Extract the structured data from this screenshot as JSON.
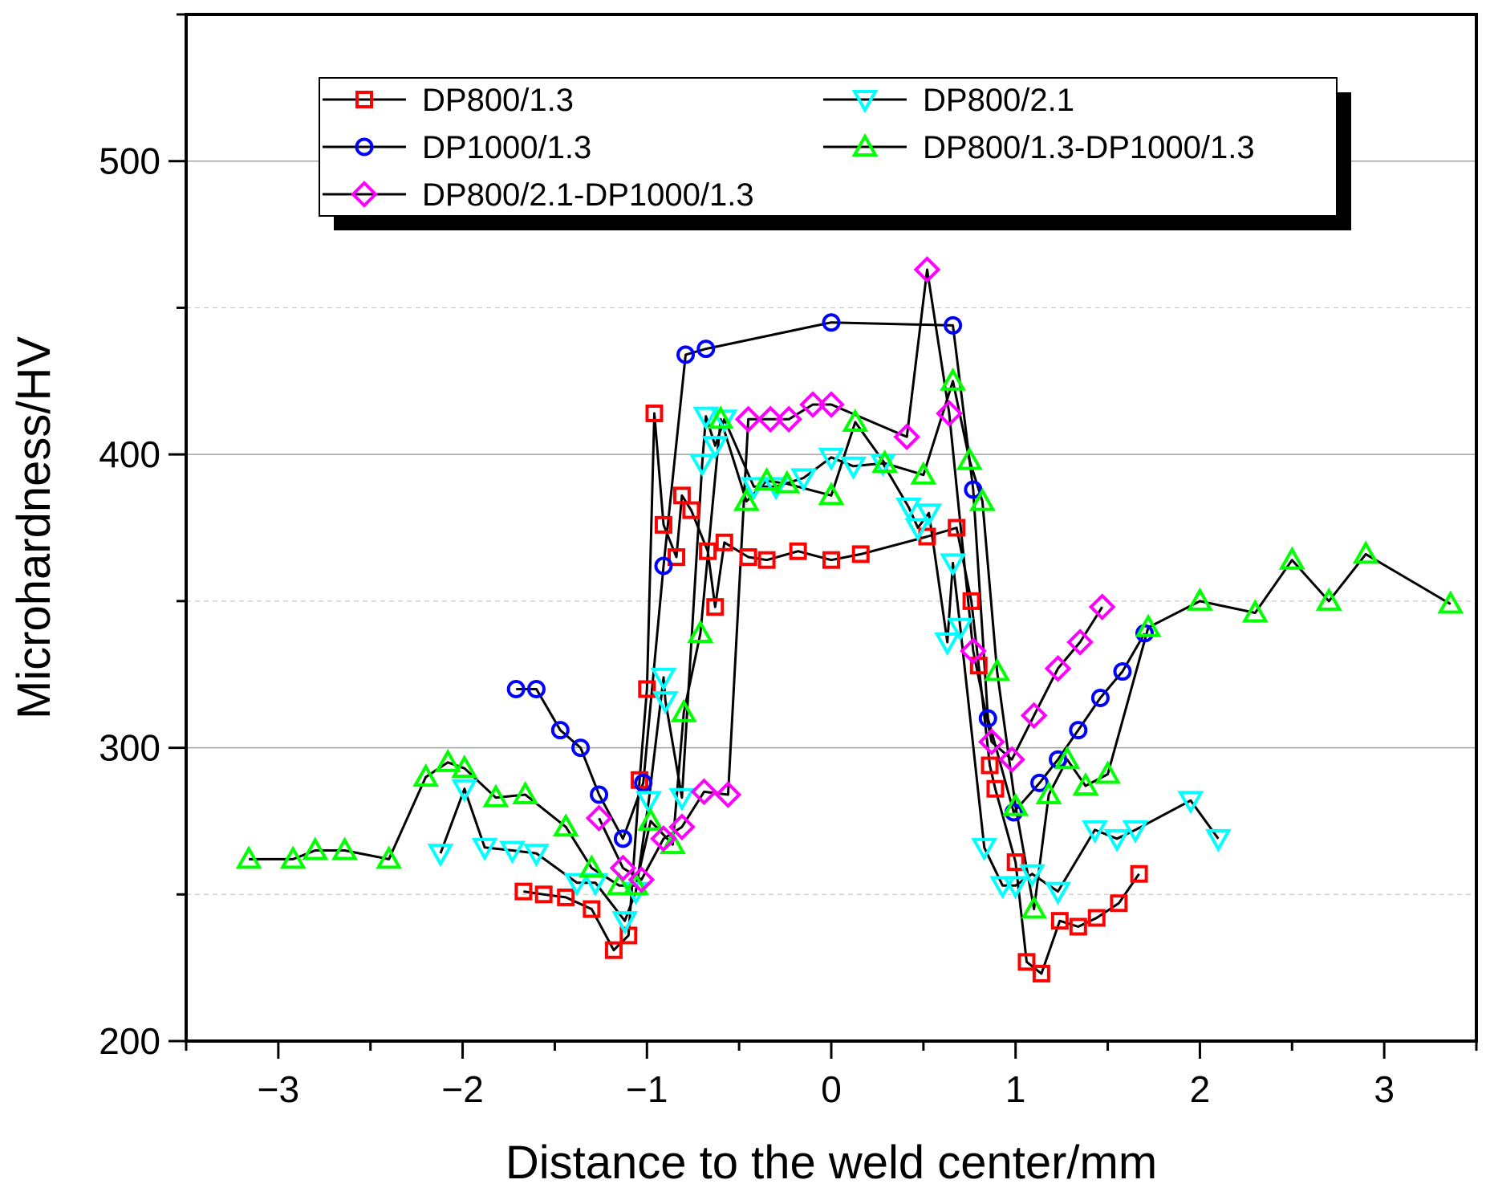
{
  "chart_data": {
    "type": "line",
    "title": "",
    "xlabel": "Distance to the weld center/mm",
    "ylabel": "Microhardness/HV",
    "xlim": [
      -3.5,
      3.5
    ],
    "ylim": [
      200,
      550
    ],
    "xticks": [
      -3,
      -2,
      -1,
      0,
      1,
      2,
      3
    ],
    "xtick_labels": [
      "−3",
      "−2",
      "−1",
      "0",
      "1",
      "2",
      "3"
    ],
    "yticks": [
      200,
      300,
      400,
      500
    ],
    "ytick_labels": [
      "200",
      "300",
      "400",
      "500"
    ],
    "major_grid_y": [
      300,
      400,
      500
    ],
    "minor_grid_y": [
      250,
      350,
      450
    ],
    "legend_position": "top",
    "series": [
      {
        "name": "DP800/1.3",
        "color": "#ff0000",
        "marker": "square",
        "x": [
          -1.67,
          -1.56,
          -1.44,
          -1.3,
          -1.18,
          -1.1,
          -1.04,
          -1.0,
          -0.96,
          -0.91,
          -0.84,
          -0.81,
          -0.76,
          -0.67,
          -0.63,
          -0.58,
          -0.45,
          -0.35,
          -0.18,
          0.0,
          0.16,
          0.52,
          0.68,
          0.76,
          0.8,
          0.86,
          0.89,
          1.0,
          1.06,
          1.14,
          1.24,
          1.34,
          1.44,
          1.56,
          1.67
        ],
        "y": [
          251,
          250,
          249,
          245,
          231,
          236,
          289,
          320,
          414,
          376,
          365,
          386,
          381,
          367,
          348,
          370,
          365,
          364,
          367,
          364,
          366,
          372,
          375,
          350,
          328,
          294,
          286,
          261,
          227,
          223,
          241,
          239,
          242,
          247,
          257
        ]
      },
      {
        "name": "DP1000/1.3",
        "color": "#0000ff",
        "marker": "circle",
        "x": [
          -1.71,
          -1.6,
          -1.47,
          -1.36,
          -1.26,
          -1.13,
          -1.02,
          -0.91,
          -0.79,
          -0.68,
          0.0,
          0.66,
          0.77,
          0.85,
          0.99,
          1.13,
          1.23,
          1.34,
          1.46,
          1.58,
          1.7
        ],
        "y": [
          320,
          320,
          306,
          300,
          284,
          269,
          288,
          362,
          434,
          436,
          445,
          444,
          388,
          310,
          278,
          288,
          296,
          306,
          317,
          326,
          339
        ]
      },
      {
        "name": "DP800/2.1",
        "color": "#00ffff",
        "marker": "triangle-down",
        "x": [
          -2.12,
          -1.99,
          -1.88,
          -1.73,
          -1.6,
          -1.38,
          -1.28,
          -1.12,
          -1.06,
          -0.99,
          -0.91,
          -0.9,
          -0.81,
          -0.7,
          -0.68,
          -0.63,
          -0.58,
          -0.42,
          -0.3,
          -0.15,
          0.0,
          0.12,
          0.28,
          0.42,
          0.47,
          0.53,
          0.63,
          0.66,
          0.7,
          0.83,
          0.93,
          1.0,
          1.09,
          1.23,
          1.43,
          1.55,
          1.65,
          1.95,
          2.1
        ],
        "y": [
          264,
          286,
          266,
          265,
          264,
          254,
          254,
          241,
          251,
          282,
          324,
          316,
          283,
          397,
          413,
          403,
          412,
          389,
          389,
          392,
          399,
          396,
          397,
          382,
          375,
          380,
          336,
          363,
          341,
          266,
          253,
          253,
          257,
          251,
          272,
          269,
          272,
          282,
          269
        ]
      },
      {
        "name": "DP800/1.3-DP1000/1.3",
        "color": "#00ff00",
        "marker": "triangle-up",
        "x": [
          -3.16,
          -2.92,
          -2.8,
          -2.64,
          -2.4,
          -2.2,
          -2.08,
          -1.99,
          -1.82,
          -1.66,
          -1.44,
          -1.3,
          -1.15,
          -1.06,
          -0.98,
          -0.86,
          -0.8,
          -0.71,
          -0.6,
          -0.46,
          -0.35,
          -0.24,
          0.0,
          0.13,
          0.29,
          0.5,
          0.66,
          0.75,
          0.82,
          0.9,
          1.0,
          1.1,
          1.18,
          1.28,
          1.38,
          1.5,
          1.72,
          2.0,
          2.3,
          2.5,
          2.7,
          2.9,
          3.36
        ],
        "y": [
          262,
          262,
          265,
          265,
          262,
          290,
          295,
          293,
          283,
          284,
          273,
          259,
          253,
          253,
          275,
          267,
          312,
          339,
          412,
          384,
          391,
          390,
          386,
          411,
          397,
          393,
          425,
          398,
          384,
          326,
          280,
          245,
          284,
          296,
          287,
          291,
          341,
          350,
          346,
          364,
          350,
          366,
          349
        ]
      },
      {
        "name": "DP800/2.1-DP1000/1.3",
        "color": "#ff00ff",
        "marker": "diamond",
        "x": [
          -1.26,
          -1.13,
          -1.03,
          -0.91,
          -0.81,
          -0.69,
          -0.56,
          -0.45,
          -0.33,
          -0.23,
          -0.1,
          0.0,
          0.41,
          0.52,
          0.64,
          0.77,
          0.87,
          0.98,
          1.1,
          1.23,
          1.35,
          1.47
        ],
        "y": [
          276,
          259,
          255,
          269,
          273,
          285,
          284,
          412,
          412,
          412,
          417,
          417,
          406,
          463,
          414,
          333,
          302,
          296,
          311,
          327,
          336,
          348
        ]
      }
    ]
  }
}
